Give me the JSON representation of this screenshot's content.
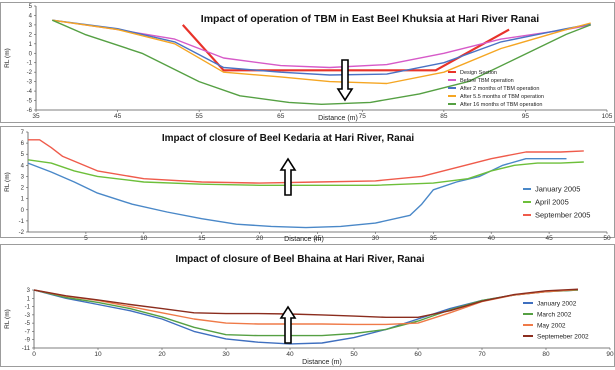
{
  "chart_data": [
    {
      "type": "line",
      "title": "Impact of operation of TBM in East Beel Khuksia at Hari River Ranai",
      "xlabel": "Distance (m)",
      "ylabel": "RL (m)",
      "xlim": [
        35,
        105
      ],
      "ylim": [
        -6,
        5
      ],
      "xticks": [
        35,
        45,
        55,
        65,
        75,
        85,
        95,
        105
      ],
      "yticks": [
        5,
        4,
        3,
        2,
        1,
        0,
        -1,
        -2,
        -3,
        -4,
        -5,
        -6
      ],
      "grid": false,
      "legend_position": "bottom-right",
      "series": [
        {
          "name": "Design Section",
          "color": "#e8332a",
          "x": [
            53,
            58,
            84,
            93
          ],
          "y": [
            3.0,
            -1.8,
            -1.8,
            2.5
          ]
        },
        {
          "name": "Before TBM operation",
          "color": "#d65ac8",
          "x": [
            37,
            45,
            52,
            58,
            65,
            71,
            78,
            85,
            92,
            100,
            103
          ],
          "y": [
            3.5,
            2.5,
            1.5,
            -0.5,
            -1.3,
            -1.5,
            -1.2,
            0.0,
            1.5,
            2.5,
            3.0
          ]
        },
        {
          "name": "After 2 months of TBM operation",
          "color": "#4a72c4",
          "x": [
            37,
            45,
            52,
            58,
            65,
            71,
            78,
            85,
            92,
            100,
            103
          ],
          "y": [
            3.5,
            2.6,
            1.2,
            -1.5,
            -2.0,
            -2.3,
            -2.2,
            -1.0,
            1.2,
            2.6,
            3.1
          ]
        },
        {
          "name": "After 5.5 months of TBM operation",
          "color": "#f5a623",
          "x": [
            37,
            45,
            52,
            58,
            65,
            71,
            78,
            85,
            92,
            100,
            103
          ],
          "y": [
            3.5,
            2.5,
            1.0,
            -2.0,
            -2.5,
            -3.0,
            -3.2,
            -2.0,
            0.5,
            2.5,
            3.2
          ]
        },
        {
          "name": "After 16 months of TBM operation",
          "color": "#55a043",
          "x": [
            37,
            41,
            48,
            55,
            60,
            66,
            70,
            76,
            82,
            88,
            94,
            100,
            103
          ],
          "y": [
            3.5,
            2.0,
            0.0,
            -3.0,
            -4.5,
            -5.2,
            -5.4,
            -5.2,
            -4.3,
            -3.0,
            -0.5,
            2.0,
            3.0
          ]
        }
      ]
    },
    {
      "type": "line",
      "title": "Impact of closure of Beel Kedaria at Hari River, Ranai",
      "xlabel": "Distance (m)",
      "ylabel": "RL (m)",
      "xlim": [
        0,
        50
      ],
      "ylim": [
        -2,
        7
      ],
      "xticks": [
        5,
        10,
        15,
        20,
        25,
        30,
        35,
        40,
        45,
        50
      ],
      "yticks": [
        7,
        6,
        5,
        4,
        3,
        2,
        1,
        0,
        -1,
        -2
      ],
      "grid": false,
      "legend_position": "right",
      "series": [
        {
          "name": "January 2005",
          "color": "#4a88c8",
          "x": [
            0,
            2,
            4,
            6,
            9,
            12,
            15,
            18,
            21,
            24,
            27,
            30,
            33,
            34,
            35,
            37,
            39,
            41,
            43,
            46.5
          ],
          "y": [
            4.2,
            3.4,
            2.5,
            1.5,
            0.5,
            -0.2,
            -0.8,
            -1.3,
            -1.5,
            -1.6,
            -1.5,
            -1.2,
            -0.5,
            0.5,
            1.8,
            2.5,
            3.0,
            4.0,
            4.6,
            4.6
          ]
        },
        {
          "name": "April 2005",
          "color": "#6dbf3a",
          "x": [
            0,
            2,
            4,
            6,
            10,
            15,
            20,
            25,
            30,
            35,
            38,
            40,
            42,
            44,
            46,
            48
          ],
          "y": [
            4.5,
            4.2,
            3.5,
            3.0,
            2.5,
            2.3,
            2.2,
            2.2,
            2.2,
            2.4,
            2.8,
            3.5,
            4.0,
            4.2,
            4.2,
            4.3
          ]
        },
        {
          "name": "September 2005",
          "color": "#ef5b4b",
          "x": [
            0,
            1,
            2,
            3,
            6,
            10,
            15,
            20,
            25,
            30,
            34,
            37,
            40,
            43,
            46,
            48
          ],
          "y": [
            6.3,
            6.3,
            5.6,
            4.8,
            3.5,
            2.8,
            2.5,
            2.4,
            2.5,
            2.6,
            3.0,
            3.8,
            4.6,
            5.2,
            5.2,
            5.3
          ]
        }
      ]
    },
    {
      "type": "line",
      "title": "Impact of closure of Beel Bhaina at Hari River, Ranai",
      "xlabel": "Distance (m)",
      "ylabel": "RL (m)",
      "xlim": [
        0,
        90
      ],
      "ylim": [
        -11,
        3
      ],
      "xticks": [
        0,
        10,
        20,
        30,
        40,
        50,
        60,
        70,
        80,
        90
      ],
      "yticks": [
        3,
        1,
        -1,
        -3,
        -5,
        -7,
        -9,
        -11
      ],
      "grid": false,
      "legend_position": "right",
      "series": [
        {
          "name": "January 2002",
          "color": "#3f6fbf",
          "x": [
            0,
            5,
            10,
            15,
            20,
            25,
            30,
            35,
            40,
            45,
            50,
            55,
            60,
            65,
            70,
            75,
            80,
            85
          ],
          "y": [
            3.0,
            1.0,
            -0.5,
            -2.0,
            -4.0,
            -7.0,
            -8.8,
            -9.6,
            -10.0,
            -9.8,
            -8.5,
            -6.5,
            -4.0,
            -1.5,
            0.5,
            1.8,
            2.6,
            3.0
          ]
        },
        {
          "name": "March 2002",
          "color": "#55a043",
          "x": [
            0,
            5,
            10,
            15,
            20,
            25,
            30,
            35,
            40,
            45,
            50,
            55,
            60,
            65,
            70,
            75,
            80,
            85
          ],
          "y": [
            3.0,
            1.2,
            0.0,
            -1.5,
            -3.5,
            -6.0,
            -7.8,
            -8.0,
            -8.0,
            -8.0,
            -7.5,
            -6.5,
            -4.5,
            -1.8,
            0.5,
            1.8,
            2.6,
            3.0
          ]
        },
        {
          "name": "May 2002",
          "color": "#ef7a48",
          "x": [
            0,
            5,
            10,
            15,
            20,
            25,
            30,
            35,
            40,
            45,
            50,
            55,
            60,
            65,
            70,
            75,
            80,
            85
          ],
          "y": [
            3.0,
            1.5,
            0.5,
            -1.0,
            -2.5,
            -4.0,
            -5.0,
            -5.2,
            -5.2,
            -5.2,
            -5.3,
            -5.3,
            -5.0,
            -2.5,
            0.2,
            1.8,
            2.6,
            3.1
          ]
        },
        {
          "name": "Septemeber 2002",
          "color": "#8b2d1e",
          "x": [
            0,
            5,
            10,
            15,
            20,
            25,
            30,
            35,
            40,
            45,
            50,
            55,
            60,
            65,
            70,
            75,
            80,
            85
          ],
          "y": [
            3.0,
            1.6,
            0.6,
            -0.5,
            -1.5,
            -2.5,
            -2.7,
            -2.7,
            -2.8,
            -3.0,
            -3.3,
            -3.6,
            -3.6,
            -2.0,
            0.3,
            1.9,
            2.8,
            3.2
          ]
        }
      ]
    }
  ]
}
